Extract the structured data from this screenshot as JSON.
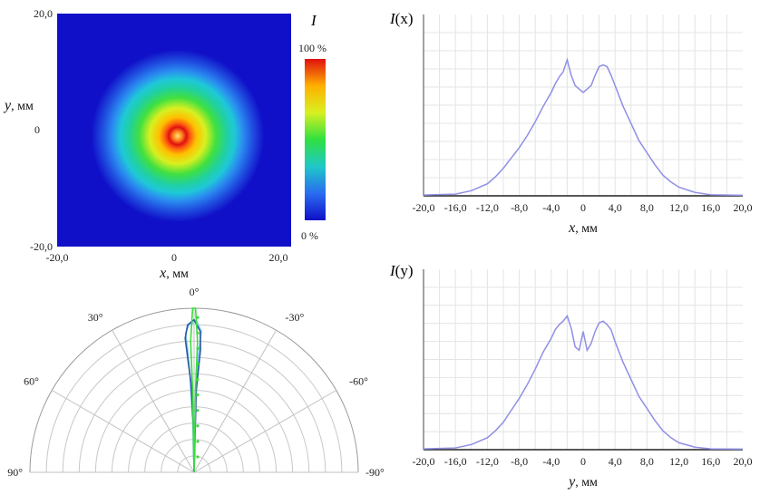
{
  "chart_data": [
    {
      "type": "heatmap",
      "title": "I",
      "xlabel_var": "x",
      "xlabel_unit": ", мм",
      "ylabel_var": "y",
      "ylabel_unit": ", мм",
      "xlim": [
        -20,
        20
      ],
      "ylim": [
        -20,
        20
      ],
      "x_ticks": [
        "-20,0",
        "0",
        "20,0"
      ],
      "y_ticks": [
        "20,0",
        "0",
        "-20,0"
      ],
      "colorbar": {
        "min_label": "0 %",
        "max_label": "100 %",
        "min": 0,
        "max": 100,
        "colors": [
          "#1010c8",
          "#2a6cf0",
          "#1fc8c8",
          "#30e040",
          "#d8f020",
          "#ffb000",
          "#e01010"
        ]
      },
      "distribution": {
        "center": [
          0.5,
          -0.3
        ],
        "ring_radius_mm": 2.3,
        "width_mm": 7.5,
        "peak_percent": 100
      }
    },
    {
      "type": "line",
      "title_var": "I",
      "title_arg": "(x)",
      "xlabel_var": "x",
      "xlabel_unit": ", мм",
      "xlim": [
        -20,
        20
      ],
      "x_ticks": [
        "-20,0",
        "-16,0",
        "-12,0",
        "-8,0",
        "-4,0",
        "0",
        "4,0",
        "8,0",
        "12,0",
        "16,0",
        "20,0"
      ],
      "ylim": [
        0,
        1
      ],
      "color": "#8f8fe6",
      "series": [
        {
          "x": [
            -20,
            -16,
            -14,
            -12,
            -11,
            -10,
            -9,
            -8,
            -7,
            -6,
            -5,
            -4,
            -3.5,
            -3,
            -2.5,
            -2,
            -1.5,
            -1,
            -0.5,
            0,
            0.5,
            1,
            1.5,
            2,
            2.5,
            3,
            3.5,
            4,
            5,
            6,
            7,
            8,
            9,
            10,
            11,
            12,
            14,
            16,
            20
          ],
          "y": [
            0.005,
            0.01,
            0.03,
            0.07,
            0.11,
            0.16,
            0.22,
            0.28,
            0.35,
            0.43,
            0.52,
            0.6,
            0.65,
            0.69,
            0.72,
            0.79,
            0.7,
            0.64,
            0.62,
            0.6,
            0.62,
            0.64,
            0.7,
            0.75,
            0.76,
            0.75,
            0.7,
            0.64,
            0.52,
            0.42,
            0.32,
            0.25,
            0.18,
            0.12,
            0.08,
            0.05,
            0.02,
            0.006,
            0.003
          ]
        }
      ]
    },
    {
      "type": "line",
      "title_var": "I",
      "title_arg": "(y)",
      "xlabel_var": "y",
      "xlabel_unit": ", мм",
      "xlim": [
        -20,
        20
      ],
      "x_ticks": [
        "-20,0",
        "-16,0",
        "-12,0",
        "-8,0",
        "-4,0",
        "0",
        "4,0",
        "8,0",
        "12,0",
        "16,0",
        "20,0"
      ],
      "ylim": [
        0,
        1
      ],
      "color": "#8f8fe6",
      "series": [
        {
          "x": [
            -20,
            -16,
            -14,
            -12,
            -11,
            -10,
            -9,
            -8,
            -7,
            -6,
            -5,
            -4,
            -3.5,
            -3,
            -2.5,
            -2,
            -1.5,
            -1,
            -0.5,
            0,
            0.5,
            1,
            1.5,
            2,
            2.5,
            3,
            3.5,
            4,
            5,
            6,
            7,
            8,
            9,
            10,
            11,
            12,
            14,
            16,
            20
          ],
          "y": [
            0.005,
            0.01,
            0.03,
            0.07,
            0.11,
            0.16,
            0.23,
            0.3,
            0.38,
            0.47,
            0.57,
            0.65,
            0.7,
            0.73,
            0.75,
            0.78,
            0.71,
            0.6,
            0.58,
            0.69,
            0.58,
            0.62,
            0.69,
            0.74,
            0.75,
            0.73,
            0.7,
            0.63,
            0.51,
            0.41,
            0.31,
            0.24,
            0.17,
            0.11,
            0.07,
            0.04,
            0.015,
            0.005,
            0.003
          ]
        }
      ]
    },
    {
      "type": "polar",
      "angle_ticks": [
        "0°",
        "30°",
        "-30°",
        "60°",
        "-60°",
        "90°",
        "-90°"
      ],
      "angle_values": [
        0,
        -30,
        30,
        -60,
        60,
        -90,
        90
      ],
      "rings": 10,
      "curves": [
        {
          "name": "",
          "color": "#7fc8ff",
          "points": [
            [
              0,
              0
            ],
            [
              -1.5,
              0.3
            ],
            [
              -2.5,
              0.6
            ],
            [
              -3,
              0.75
            ],
            [
              -3.5,
              0.85
            ],
            [
              -2,
              0.9
            ],
            [
              1,
              0.92
            ],
            [
              3,
              0.86
            ],
            [
              2,
              0.7
            ],
            [
              1,
              0.4
            ],
            [
              0,
              0
            ]
          ]
        },
        {
          "name": "",
          "color": "#2a5aa0",
          "points": [
            [
              0,
              0
            ],
            [
              -1,
              0.3
            ],
            [
              -2,
              0.55
            ],
            [
              -3.2,
              0.7
            ],
            [
              -3.8,
              0.82
            ],
            [
              -2.5,
              0.9
            ],
            [
              0,
              0.93
            ],
            [
              2.5,
              0.86
            ],
            [
              3,
              0.75
            ],
            [
              1.5,
              0.5
            ],
            [
              0,
              0
            ]
          ]
        },
        {
          "name": "",
          "color": "#3cdc3c",
          "points": [
            [
              0,
              0
            ],
            [
              -1,
              0.5
            ],
            [
              -1.5,
              0.8
            ],
            [
              -0.5,
              1.0
            ],
            [
              0.5,
              1.0
            ],
            [
              1.5,
              0.8
            ],
            [
              1,
              0.5
            ],
            [
              0,
              0
            ]
          ]
        }
      ]
    }
  ]
}
